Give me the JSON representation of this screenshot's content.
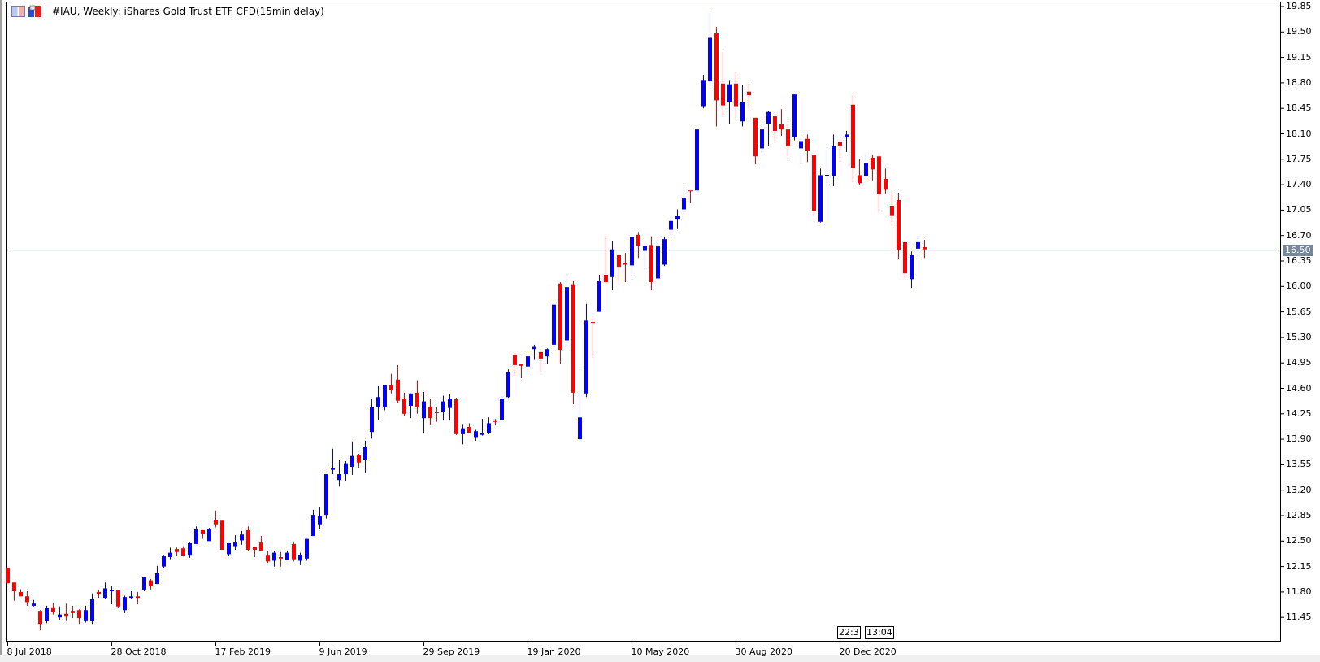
{
  "header": {
    "title": "#IAU, Weekly:  iShares Gold Trust ETF CFD(15min delay)",
    "icons": [
      "chart-window-icon",
      "template-icon"
    ]
  },
  "price_axis": {
    "labels": [
      "19.85",
      "19.50",
      "19.15",
      "18.80",
      "18.45",
      "18.10",
      "17.75",
      "17.40",
      "17.05",
      "16.70",
      "16.35",
      "16.00",
      "15.65",
      "15.30",
      "14.95",
      "14.60",
      "14.25",
      "13.90",
      "13.55",
      "13.20",
      "12.85",
      "12.50",
      "12.15",
      "11.80",
      "11.45"
    ],
    "max": 19.85,
    "min": 11.45,
    "current_price": "16.50",
    "current_price_value": 16.5
  },
  "time_axis": {
    "labels": [
      "8 Jul 2018",
      "28 Oct 2018",
      "17 Feb 2019",
      "9 Jun 2019",
      "29 Sep 2019",
      "19 Jan 2020",
      "10 May 2020",
      "30 Aug 2020",
      "20 Dec 2020"
    ],
    "label_every_bars": 16
  },
  "time_boxes": [
    "22:3",
    "13:04"
  ],
  "colors": {
    "up": "#0000FF",
    "down": "#FF0000",
    "price_line": "#778899",
    "background": "#FFFFFF"
  },
  "chart_data": {
    "type": "candlestick",
    "timeframe": "Weekly",
    "columns": [
      "open",
      "high",
      "low",
      "close"
    ],
    "candles": [
      [
        12.13,
        12.13,
        11.92,
        11.92
      ],
      [
        11.93,
        11.93,
        11.68,
        11.81
      ],
      [
        11.8,
        11.84,
        11.74,
        11.74
      ],
      [
        11.74,
        11.81,
        11.61,
        11.66
      ],
      [
        11.61,
        11.69,
        11.6,
        11.64
      ],
      [
        11.54,
        11.55,
        11.27,
        11.36
      ],
      [
        11.4,
        11.61,
        11.37,
        11.58
      ],
      [
        11.59,
        11.65,
        11.49,
        11.52
      ],
      [
        11.45,
        11.6,
        11.42,
        11.49
      ],
      [
        11.5,
        11.64,
        11.41,
        11.46
      ],
      [
        11.54,
        11.61,
        11.44,
        11.51
      ],
      [
        11.55,
        11.56,
        11.36,
        11.44
      ],
      [
        11.41,
        11.61,
        11.38,
        11.55
      ],
      [
        11.4,
        11.78,
        11.36,
        11.7
      ],
      [
        11.8,
        11.83,
        11.72,
        11.77
      ],
      [
        11.72,
        11.93,
        11.71,
        11.85
      ],
      [
        11.81,
        11.88,
        11.63,
        11.83
      ],
      [
        11.83,
        11.83,
        11.58,
        11.6
      ],
      [
        11.55,
        11.75,
        11.51,
        11.73
      ],
      [
        11.72,
        11.81,
        11.71,
        11.74
      ],
      [
        11.74,
        11.8,
        11.63,
        11.72
      ],
      [
        11.83,
        12.0,
        11.81,
        12.0
      ],
      [
        11.96,
        11.98,
        11.82,
        11.88
      ],
      [
        11.91,
        12.16,
        11.91,
        12.06
      ],
      [
        12.15,
        12.3,
        12.13,
        12.29
      ],
      [
        12.28,
        12.41,
        12.25,
        12.34
      ],
      [
        12.39,
        12.41,
        12.29,
        12.35
      ],
      [
        12.4,
        12.43,
        12.29,
        12.29
      ],
      [
        12.3,
        12.48,
        12.27,
        12.47
      ],
      [
        12.46,
        12.7,
        12.46,
        12.66
      ],
      [
        12.65,
        12.65,
        12.53,
        12.6
      ],
      [
        12.5,
        12.68,
        12.5,
        12.67
      ],
      [
        12.79,
        12.92,
        12.69,
        12.73
      ],
      [
        12.78,
        12.78,
        12.38,
        12.38
      ],
      [
        12.32,
        12.47,
        12.29,
        12.47
      ],
      [
        12.43,
        12.58,
        12.38,
        12.48
      ],
      [
        12.51,
        12.64,
        12.45,
        12.59
      ],
      [
        12.65,
        12.7,
        12.36,
        12.38
      ],
      [
        12.42,
        12.42,
        12.28,
        12.38
      ],
      [
        12.48,
        12.57,
        12.36,
        12.37
      ],
      [
        12.3,
        12.37,
        12.2,
        12.22
      ],
      [
        12.23,
        12.36,
        12.15,
        12.34
      ],
      [
        12.28,
        12.35,
        12.15,
        12.26
      ],
      [
        12.24,
        12.37,
        12.24,
        12.34
      ],
      [
        12.46,
        12.48,
        12.22,
        12.25
      ],
      [
        12.23,
        12.34,
        12.17,
        12.31
      ],
      [
        12.26,
        12.53,
        12.23,
        12.53
      ],
      [
        12.57,
        12.93,
        12.57,
        12.86
      ],
      [
        12.73,
        12.96,
        12.67,
        12.85
      ],
      [
        12.86,
        13.42,
        12.81,
        13.42
      ],
      [
        13.48,
        13.77,
        13.42,
        13.51
      ],
      [
        13.34,
        13.61,
        13.25,
        13.42
      ],
      [
        13.42,
        13.6,
        13.32,
        13.57
      ],
      [
        13.52,
        13.87,
        13.41,
        13.67
      ],
      [
        13.68,
        13.7,
        13.51,
        13.58
      ],
      [
        13.61,
        13.88,
        13.44,
        13.79
      ],
      [
        14.0,
        14.46,
        13.91,
        14.34
      ],
      [
        14.34,
        14.63,
        14.16,
        14.48
      ],
      [
        14.34,
        14.65,
        14.3,
        14.64
      ],
      [
        14.65,
        14.8,
        14.53,
        14.58
      ],
      [
        14.72,
        14.92,
        14.4,
        14.43
      ],
      [
        14.46,
        14.54,
        14.22,
        14.25
      ],
      [
        14.36,
        14.53,
        14.19,
        14.53
      ],
      [
        14.54,
        14.71,
        14.25,
        14.34
      ],
      [
        14.19,
        14.55,
        13.99,
        14.42
      ],
      [
        14.35,
        14.46,
        14.1,
        14.19
      ],
      [
        14.27,
        14.34,
        14.14,
        14.26
      ],
      [
        14.28,
        14.5,
        14.17,
        14.42
      ],
      [
        14.33,
        14.52,
        14.17,
        14.46
      ],
      [
        14.45,
        14.47,
        13.96,
        13.97
      ],
      [
        13.97,
        14.11,
        13.83,
        14.05
      ],
      [
        14.07,
        14.12,
        13.98,
        13.99
      ],
      [
        13.93,
        14.03,
        13.88,
        14.01
      ],
      [
        13.96,
        14.18,
        13.95,
        13.98
      ],
      [
        13.99,
        14.2,
        13.97,
        14.12
      ],
      [
        14.15,
        14.18,
        14.09,
        14.14
      ],
      [
        14.17,
        14.51,
        14.17,
        14.46
      ],
      [
        14.48,
        14.86,
        14.47,
        14.82
      ],
      [
        15.06,
        15.09,
        14.77,
        14.92
      ],
      [
        14.93,
        14.93,
        14.74,
        14.91
      ],
      [
        14.9,
        15.07,
        14.81,
        15.04
      ],
      [
        15.14,
        15.2,
        14.99,
        15.17
      ],
      [
        15.1,
        15.11,
        14.81,
        15.01
      ],
      [
        15.04,
        15.15,
        14.93,
        15.14
      ],
      [
        15.2,
        15.77,
        15.19,
        15.75
      ],
      [
        16.04,
        16.06,
        14.94,
        15.13
      ],
      [
        15.26,
        16.18,
        15.15,
        15.99
      ],
      [
        16.03,
        16.07,
        14.38,
        14.54
      ],
      [
        13.9,
        14.86,
        13.88,
        14.2
      ],
      [
        14.53,
        15.76,
        14.48,
        15.53
      ],
      [
        15.51,
        15.57,
        15.03,
        15.5
      ],
      [
        15.65,
        16.16,
        15.65,
        16.07
      ],
      [
        16.16,
        16.7,
        16.06,
        16.06
      ],
      [
        16.14,
        16.63,
        15.95,
        16.51
      ],
      [
        16.43,
        16.44,
        16.04,
        16.27
      ],
      [
        16.32,
        16.46,
        16.06,
        16.3
      ],
      [
        16.29,
        16.75,
        16.15,
        16.68
      ],
      [
        16.71,
        16.75,
        16.39,
        16.56
      ],
      [
        16.49,
        16.61,
        16.2,
        16.56
      ],
      [
        16.57,
        16.69,
        15.96,
        16.06
      ],
      [
        16.11,
        16.66,
        16.1,
        16.55
      ],
      [
        16.3,
        16.68,
        16.28,
        16.65
      ],
      [
        16.78,
        16.97,
        16.69,
        16.9
      ],
      [
        16.93,
        17.06,
        16.8,
        16.97
      ],
      [
        17.06,
        17.37,
        16.99,
        17.21
      ],
      [
        17.32,
        17.32,
        17.15,
        17.31
      ],
      [
        17.32,
        18.21,
        17.31,
        18.16
      ],
      [
        18.48,
        18.91,
        18.45,
        18.84
      ],
      [
        18.82,
        19.77,
        18.73,
        19.42
      ],
      [
        19.48,
        19.57,
        18.2,
        18.56
      ],
      [
        18.79,
        19.23,
        18.34,
        18.49
      ],
      [
        18.54,
        18.84,
        18.24,
        18.78
      ],
      [
        18.79,
        18.95,
        18.3,
        18.48
      ],
      [
        18.27,
        18.77,
        18.2,
        18.53
      ],
      [
        18.68,
        18.81,
        18.46,
        18.63
      ],
      [
        18.32,
        18.32,
        17.68,
        17.79
      ],
      [
        17.9,
        18.25,
        17.81,
        18.16
      ],
      [
        18.24,
        18.41,
        17.93,
        18.4
      ],
      [
        18.34,
        18.38,
        18.0,
        18.14
      ],
      [
        18.23,
        18.44,
        18.07,
        18.16
      ],
      [
        18.16,
        18.25,
        17.78,
        17.93
      ],
      [
        18.05,
        18.65,
        18.01,
        18.64
      ],
      [
        17.9,
        18.07,
        17.65,
        18.0
      ],
      [
        18.03,
        18.09,
        17.71,
        17.86
      ],
      [
        17.81,
        17.81,
        16.96,
        17.04
      ],
      [
        16.89,
        17.62,
        16.88,
        17.53
      ],
      [
        17.53,
        17.89,
        17.4,
        17.535
      ],
      [
        17.52,
        18.09,
        17.38,
        17.93
      ],
      [
        17.99,
        17.99,
        17.74,
        17.93
      ],
      [
        18.05,
        18.14,
        17.85,
        18.09
      ],
      [
        18.5,
        18.64,
        17.44,
        17.63
      ],
      [
        17.53,
        17.75,
        17.39,
        17.42
      ],
      [
        17.52,
        17.84,
        17.48,
        17.7
      ],
      [
        17.77,
        17.81,
        17.46,
        17.61
      ],
      [
        17.79,
        17.81,
        17.02,
        17.27
      ],
      [
        17.48,
        17.62,
        17.28,
        17.33
      ],
      [
        17.11,
        17.3,
        16.86,
        16.98
      ],
      [
        17.19,
        17.29,
        16.37,
        16.5
      ],
      [
        16.61,
        16.62,
        16.11,
        16.18
      ],
      [
        16.1,
        16.48,
        15.98,
        16.43
      ],
      [
        16.52,
        16.7,
        16.39,
        16.62
      ],
      [
        16.54,
        16.64,
        16.39,
        16.51
      ]
    ]
  }
}
